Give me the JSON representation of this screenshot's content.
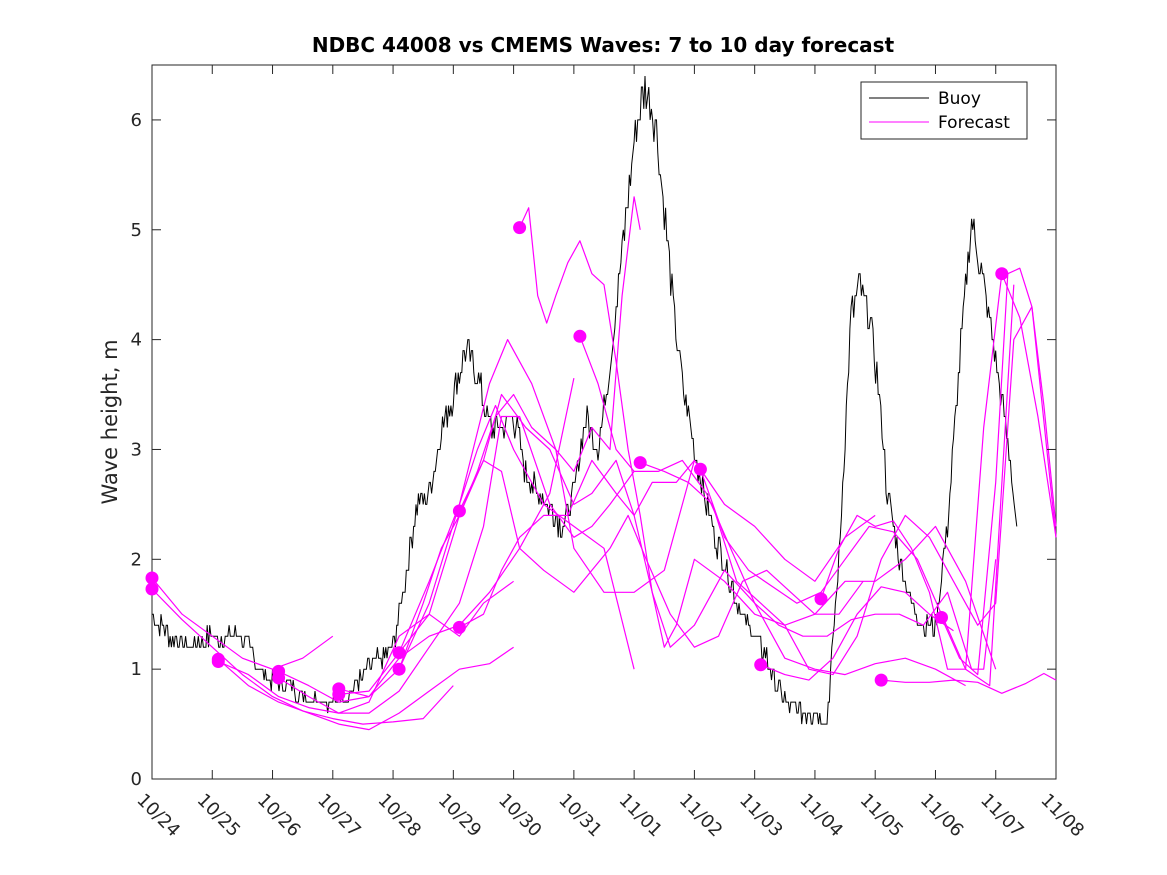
{
  "chart_data": {
    "type": "line",
    "title": "NDBC 44008 vs CMEMS Waves: 7 to 10 day forecast",
    "xlabel": "",
    "ylabel": "Wave height, m",
    "xlim": [
      0,
      15
    ],
    "ylim": [
      0,
      6.5
    ],
    "xticks": [
      0,
      1,
      2,
      3,
      4,
      5,
      6,
      7,
      8,
      9,
      10,
      11,
      12,
      13,
      14,
      15
    ],
    "xtick_labels": [
      "10/24",
      "10/25",
      "10/26",
      "10/27",
      "10/28",
      "10/29",
      "10/30",
      "10/31",
      "11/01",
      "11/02",
      "11/03",
      "11/04",
      "11/05",
      "11/06",
      "11/07",
      "11/08"
    ],
    "yticks": [
      0,
      1,
      2,
      3,
      4,
      5,
      6
    ],
    "ytick_labels": [
      "0",
      "1",
      "2",
      "3",
      "4",
      "5",
      "6"
    ],
    "grid": false,
    "legend": {
      "position": "top-right",
      "entries": [
        "Buoy",
        "Forecast"
      ]
    },
    "series": [
      {
        "name": "Buoy",
        "color": "#000000",
        "style": "jagged",
        "x": [
          0,
          0.3,
          0.6,
          1,
          1.3,
          1.5,
          1.8,
          2,
          2.3,
          2.6,
          3,
          3.3,
          3.6,
          3.8,
          4,
          4.2,
          4.4,
          4.6,
          4.8,
          5,
          5.2,
          5.4,
          5.6,
          5.8,
          6,
          6.2,
          6.4,
          6.6,
          6.8,
          7,
          7.2,
          7.4,
          7.6,
          7.8,
          8,
          8.1,
          8.2,
          8.35,
          8.5,
          8.65,
          8.8,
          9,
          9.2,
          9.4,
          9.6,
          9.8,
          10,
          10.2,
          10.4,
          10.6,
          10.8,
          11,
          11.2,
          11.4,
          11.6,
          11.75,
          11.9,
          12.05,
          12.2,
          12.4,
          12.6,
          12.8,
          13,
          13.2,
          13.4,
          13.6,
          13.8,
          14,
          14.2,
          14.35
        ],
        "y": [
          1.5,
          1.3,
          1.2,
          1.3,
          1.3,
          1.3,
          1.0,
          0.9,
          0.85,
          0.75,
          0.7,
          0.8,
          1.0,
          1.1,
          1.2,
          1.8,
          2.5,
          2.6,
          3.2,
          3.5,
          3.9,
          3.7,
          3.2,
          3.2,
          3.3,
          2.8,
          2.6,
          2.5,
          2.3,
          2.6,
          3.3,
          3.0,
          3.8,
          4.8,
          5.8,
          6.1,
          6.3,
          6.0,
          5.2,
          4.3,
          3.6,
          3.0,
          2.5,
          2.1,
          1.8,
          1.5,
          1.3,
          1.1,
          0.8,
          0.65,
          0.6,
          0.6,
          0.5,
          2.0,
          4.2,
          4.5,
          4.2,
          3.6,
          2.6,
          2.0,
          1.6,
          1.4,
          1.4,
          2.3,
          3.8,
          5.1,
          4.5,
          3.8,
          3.1,
          2.3
        ],
        "jitter_amplitude": 0.15
      }
    ],
    "forecast_runs": [
      {
        "name": "Forecast",
        "color": "#ff00ff",
        "start": [
          0,
          1.83
        ],
        "x": [
          0,
          0.5,
          1,
          1.5,
          2,
          2.5,
          3
        ],
        "y": [
          1.83,
          1.5,
          1.3,
          1.1,
          1.0,
          1.1,
          1.3
        ]
      },
      {
        "name": "Forecast",
        "color": "#ff00ff",
        "start": [
          0,
          1.73
        ],
        "x": [
          0,
          0.5,
          1,
          1.5,
          2,
          2.5,
          3,
          3.5,
          4,
          4.5,
          5
        ],
        "y": [
          1.73,
          1.45,
          1.2,
          0.95,
          0.75,
          0.62,
          0.55,
          0.5,
          0.52,
          0.55,
          0.85
        ]
      },
      {
        "name": "Forecast",
        "color": "#ff00ff",
        "start": [
          1.1,
          1.09
        ],
        "x": [
          1.1,
          1.6,
          2.1,
          2.6,
          3.1,
          3.6,
          4.1,
          4.6,
          5.1,
          5.6,
          6
        ],
        "y": [
          1.09,
          0.85,
          0.7,
          0.6,
          0.5,
          0.45,
          0.6,
          0.8,
          1.0,
          1.05,
          1.2
        ]
      },
      {
        "name": "Forecast",
        "color": "#ff00ff",
        "start": [
          1.1,
          1.07
        ],
        "x": [
          1.1,
          1.6,
          2.1,
          2.6,
          3.1,
          3.6,
          4.1,
          4.6,
          5.1,
          5.5,
          6
        ],
        "y": [
          1.07,
          0.95,
          0.75,
          0.65,
          0.6,
          0.7,
          1.3,
          1.5,
          1.3,
          1.6,
          1.8
        ]
      },
      {
        "name": "Forecast",
        "color": "#ff00ff",
        "start": [
          2.1,
          0.98
        ],
        "x": [
          2.1,
          2.6,
          3.1,
          3.6,
          4.1,
          4.6,
          5.1,
          5.6,
          6.1,
          6.6,
          7
        ],
        "y": [
          0.98,
          0.85,
          0.7,
          0.75,
          1.1,
          1.3,
          1.4,
          1.7,
          2.1,
          2.6,
          3.65
        ]
      },
      {
        "name": "Forecast",
        "color": "#ff00ff",
        "start": [
          2.1,
          0.92
        ],
        "x": [
          2.1,
          2.6,
          3.1,
          3.6,
          4.1,
          4.6,
          5.1,
          5.5,
          5.8,
          6.1,
          6.6,
          7,
          7.3,
          7.6,
          8
        ],
        "y": [
          0.92,
          0.75,
          0.6,
          0.6,
          0.8,
          1.2,
          1.6,
          2.3,
          3.3,
          3.3,
          2.5,
          2.2,
          2.3,
          2.5,
          2.8
        ]
      },
      {
        "name": "Forecast",
        "color": "#ff00ff",
        "start": [
          3.1,
          0.82
        ],
        "x": [
          3.1,
          3.6,
          4.1,
          4.6,
          5.1,
          5.4,
          5.7,
          6,
          6.5,
          7,
          7.5,
          8
        ],
        "y": [
          0.82,
          0.75,
          1.0,
          1.6,
          2.5,
          3.0,
          3.4,
          3.0,
          2.5,
          2.3,
          2.1,
          1.0
        ]
      },
      {
        "name": "Forecast",
        "color": "#ff00ff",
        "start": [
          3.1,
          0.77
        ],
        "x": [
          3.1,
          3.6,
          4.1,
          4.6,
          5.1,
          5.6,
          5.9,
          6.3,
          6.7,
          7,
          7.5,
          8,
          8.5,
          9
        ],
        "y": [
          0.77,
          0.8,
          1.15,
          1.8,
          2.5,
          3.6,
          4.0,
          3.6,
          3.0,
          2.1,
          1.7,
          1.7,
          1.9,
          2.9
        ]
      },
      {
        "name": "Forecast",
        "color": "#ff00ff",
        "start": [
          4.1,
          1.15
        ],
        "x": [
          4.1,
          4.6,
          5.1,
          5.5,
          5.8,
          6.1,
          6.5,
          7,
          7.3,
          7.6,
          7.9,
          8.2,
          8.6,
          9,
          9.4,
          9.8,
          10.2,
          10.6,
          11,
          11.4,
          11.8
        ],
        "y": [
          1.15,
          1.5,
          2.4,
          2.9,
          2.8,
          2.1,
          1.9,
          1.7,
          1.9,
          2.1,
          2.4,
          2.0,
          1.5,
          1.2,
          1.3,
          1.8,
          1.9,
          1.7,
          1.5,
          1.5,
          1.8
        ]
      },
      {
        "name": "Forecast",
        "color": "#ff00ff",
        "start": [
          4.1,
          1.0
        ],
        "x": [
          4.1,
          4.5,
          4.8,
          5.1,
          5.4,
          5.7,
          6,
          6.3,
          6.7,
          7,
          7.3,
          7.6,
          7.8,
          8,
          8.1
        ],
        "y": [
          1.0,
          1.6,
          2.1,
          2.4,
          2.8,
          3.3,
          3.5,
          3.2,
          3.0,
          2.8,
          3.2,
          3.0,
          4.4,
          5.3,
          5.0
        ]
      },
      {
        "name": "Forecast",
        "color": "#ff00ff",
        "start": [
          5.1,
          1.38
        ],
        "x": [
          5.1,
          5.5,
          5.8,
          6.1,
          6.5,
          6.9,
          7.3,
          7.7,
          8,
          8.3,
          8.6,
          9,
          9.5,
          10,
          10.5,
          11,
          11.5,
          12,
          12.5,
          13,
          13.5
        ],
        "y": [
          1.38,
          1.5,
          1.9,
          2.2,
          2.4,
          2.4,
          2.9,
          2.6,
          2.4,
          1.7,
          1.2,
          1.4,
          1.9,
          1.6,
          1.1,
          1.0,
          0.95,
          1.05,
          1.1,
          1.0,
          0.85
        ]
      },
      {
        "name": "Forecast",
        "color": "#ff00ff",
        "start": [
          5.1,
          2.44
        ],
        "x": [
          5.1,
          5.5,
          5.8,
          6.2,
          6.6,
          7,
          7.3,
          7.7,
          8,
          8.3,
          8.7,
          9,
          9.5,
          10,
          10.5,
          11,
          11.5,
          12
        ],
        "y": [
          2.44,
          2.9,
          3.5,
          3.2,
          3.0,
          2.5,
          2.6,
          2.9,
          2.4,
          2.7,
          2.7,
          2.9,
          2.5,
          2.3,
          2.0,
          1.8,
          2.2,
          2.4
        ]
      },
      {
        "name": "Forecast",
        "color": "#ff00ff",
        "start": [
          6.1,
          5.02
        ],
        "x": [
          6.1,
          6.25,
          6.4,
          6.55,
          6.7,
          6.9,
          7.1,
          7.3,
          7.5,
          7.7,
          7.9,
          8.1,
          8.3,
          8.5,
          8.7,
          9,
          9.5,
          10,
          10.5,
          11,
          11.5,
          12,
          12.5,
          13,
          13.5,
          14
        ],
        "y": [
          5.02,
          5.2,
          4.4,
          4.15,
          4.4,
          4.7,
          4.9,
          4.6,
          4.5,
          3.8,
          3.0,
          2.4,
          1.7,
          1.2,
          1.4,
          2.0,
          1.8,
          1.5,
          1.4,
          1.5,
          1.8,
          1.8,
          2.0,
          2.3,
          1.8,
          1.0
        ]
      },
      {
        "name": "Forecast",
        "color": "#ff00ff",
        "start": [
          7.1,
          4.03
        ],
        "x": [
          7.1,
          7.4,
          7.7,
          8,
          8.4,
          8.8,
          9.2,
          9.6,
          10,
          10.4,
          10.8,
          11.2,
          11.6,
          12,
          12.4,
          12.8,
          13.2,
          13.6,
          13.8,
          14
        ],
        "y": [
          4.03,
          3.6,
          3.0,
          2.8,
          2.8,
          2.9,
          2.6,
          2.1,
          1.6,
          1.4,
          1.3,
          1.3,
          1.45,
          1.5,
          1.5,
          1.4,
          1.7,
          1.0,
          1.0,
          2.0
        ]
      },
      {
        "name": "Forecast",
        "color": "#ff00ff",
        "start": [
          8.1,
          2.88
        ],
        "x": [
          8.1,
          8.5,
          8.9,
          9.3,
          9.7,
          10.1,
          10.5,
          10.9,
          11.3,
          11.7,
          12.1,
          12.5,
          12.9,
          13.3,
          13.7,
          14,
          14.3,
          14.6,
          15
        ],
        "y": [
          2.88,
          2.8,
          2.7,
          2.5,
          1.8,
          1.6,
          1.4,
          1.0,
          0.95,
          1.3,
          2.0,
          2.4,
          2.2,
          1.8,
          1.4,
          1.6,
          4.0,
          4.3,
          2.2
        ]
      },
      {
        "name": "Forecast",
        "color": "#ff00ff",
        "start": [
          9.1,
          2.82
        ],
        "x": [
          9.1,
          9.5,
          9.9,
          10.3,
          10.7,
          11.1,
          11.5,
          11.9,
          12.3,
          12.7,
          13.1,
          13.5,
          13.9,
          14.3
        ],
        "y": [
          2.82,
          2.2,
          1.9,
          1.75,
          1.6,
          1.7,
          2.0,
          2.3,
          2.25,
          2.0,
          1.5,
          1.0,
          0.85,
          4.5
        ]
      },
      {
        "name": "Forecast",
        "color": "#ff00ff",
        "start": [
          10.1,
          1.04
        ],
        "x": [
          10.1,
          10.5,
          10.9,
          11.3,
          11.7,
          12.1,
          12.5,
          12.9,
          13.3
        ],
        "y": [
          1.04,
          0.95,
          0.9,
          1.1,
          1.5,
          1.75,
          1.7,
          1.5,
          1.35
        ]
      },
      {
        "name": "Forecast",
        "color": "#ff00ff",
        "start": [
          11.1,
          1.64
        ],
        "x": [
          11.1,
          11.4,
          11.7,
          12,
          12.3,
          12.6,
          12.9,
          13.2,
          13.5,
          13.8,
          14.1,
          14.4,
          14.7,
          15
        ],
        "y": [
          1.64,
          2.1,
          2.4,
          2.3,
          2.35,
          2.1,
          1.7,
          1.0,
          1.0,
          3.2,
          4.6,
          4.2,
          3.3,
          2.2
        ]
      },
      {
        "name": "Forecast",
        "color": "#ff00ff",
        "start": [
          12.1,
          0.9
        ],
        "x": [
          12.1,
          12.5,
          12.9,
          13.3,
          13.7,
          14.1,
          14.5,
          14.8,
          15
        ],
        "y": [
          0.9,
          0.88,
          0.88,
          0.9,
          0.88,
          0.78,
          0.87,
          0.96,
          0.9
        ]
      },
      {
        "name": "Forecast",
        "color": "#ff00ff",
        "start": [
          13.1,
          1.47
        ],
        "x": [
          13.1,
          13.4,
          13.7,
          14,
          14.2,
          14.4,
          14.6,
          14.8,
          15
        ],
        "y": [
          1.47,
          1.1,
          0.95,
          2.7,
          4.6,
          4.65,
          4.3,
          3.4,
          2.3
        ]
      },
      {
        "name": "Forecast",
        "color": "#ff00ff",
        "start": [
          14.1,
          4.6
        ],
        "x": [
          14.1
        ],
        "y": [
          4.6
        ]
      }
    ]
  }
}
